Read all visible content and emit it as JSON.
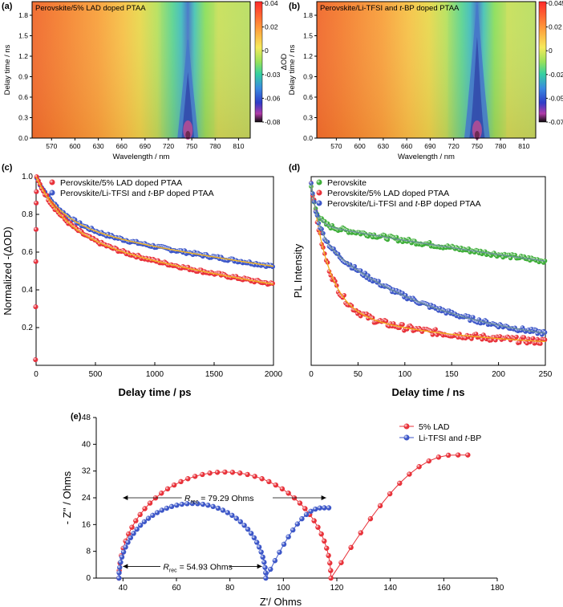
{
  "panels": {
    "a": {
      "label": "(a)",
      "title": "Perovskite/5% LAD doped PTAA"
    },
    "b": {
      "label": "(b)",
      "title_pre": "Perovskite/Li-TFSI and ",
      "title_it": "t",
      "title_post": "-BP doped PTAA"
    },
    "c": {
      "label": "(c)"
    },
    "d": {
      "label": "(d)"
    },
    "e": {
      "label": "(e)"
    }
  },
  "colors": {
    "red": "#e8323a",
    "blue": "#3d57c8",
    "green": "#3fae3a",
    "fit_yellow": "#f2b21b"
  },
  "chart_data": [
    {
      "id": "a",
      "type": "heatmap",
      "title": "Perovskite/5% LAD doped PTAA",
      "xlabel": "Wavelength / nm",
      "ylabel": "Delay time / ns",
      "xlim": [
        545,
        825
      ],
      "ylim": [
        0,
        2.0
      ],
      "xticks": [
        570,
        600,
        630,
        660,
        690,
        720,
        750,
        780,
        810
      ],
      "yticks": [
        0.0,
        0.3,
        0.6,
        0.9,
        1.2,
        1.5,
        1.8
      ],
      "peak_nm": 745,
      "colorbar_label": "ΔOD",
      "colorbar_ticks": [
        "0.04",
        "0.02",
        "0",
        "-0.03",
        "-0.06",
        "-0.08"
      ]
    },
    {
      "id": "b",
      "type": "heatmap",
      "title": "Perovskite/Li-TFSI and t-BP doped PTAA",
      "xlabel": "Wavelength / nm",
      "ylabel": "Delay time / ns",
      "xlim": [
        545,
        825
      ],
      "ylim": [
        0,
        2.0
      ],
      "xticks": [
        570,
        600,
        630,
        660,
        690,
        720,
        750,
        780,
        810
      ],
      "yticks": [
        0.0,
        0.3,
        0.6,
        0.9,
        1.2,
        1.5,
        1.8
      ],
      "peak_nm": 750,
      "colorbar_label": "ΔOD",
      "colorbar_ticks": [
        "0.045",
        "0.02",
        "0",
        "-0.02",
        "-0.05",
        "-0.07"
      ]
    },
    {
      "id": "c",
      "type": "scatter",
      "xlabel": "Delay time / ps",
      "ylabel": "Normalized -(ΔOD)",
      "xlim": [
        0,
        2000
      ],
      "ylim": [
        0,
        1.0
      ],
      "xticks": [
        0,
        500,
        1000,
        1500,
        2000
      ],
      "yticks": [
        0.2,
        0.4,
        0.6,
        0.8,
        1.0
      ],
      "series": [
        {
          "name": "Perovskite/5% LAD doped PTAA",
          "color": "red",
          "a1": 0.3,
          "t1": 250,
          "a2": 0.7,
          "t2": 4100
        },
        {
          "name_pre": "Perovskite/Li-TFSI and ",
          "name_it": "t",
          "name_post": "-BP doped PTAA",
          "color": "blue",
          "a1": 0.25,
          "t1": 220,
          "a2": 0.75,
          "t2": 5600
        }
      ]
    },
    {
      "id": "d",
      "type": "scatter",
      "xlabel": "Delay time / ns",
      "ylabel": "PL Intensity",
      "xlim": [
        0,
        250
      ],
      "xticks": [
        0,
        50,
        100,
        150,
        200,
        250
      ],
      "series": [
        {
          "name": "Perovskite",
          "color": "green",
          "a1": 0.22,
          "t1": 6,
          "a2": 0.78,
          "t2": 770
        },
        {
          "name": "Perovskite/5% LAD doped PTAA",
          "color": "red",
          "a1": 0.75,
          "t1": 18,
          "a2": 0.25,
          "t2": 140
        },
        {
          "name_pre": "Perovskite/Li-TFSI and ",
          "name_it": "t",
          "name_post": "-BP doped PTAA",
          "color": "blue",
          "a1": 0.3,
          "t1": 8,
          "a2": 0.7,
          "t2": 130
        }
      ]
    },
    {
      "id": "e",
      "type": "scatter",
      "xlabel": "Z'/ Ohms",
      "ylabel": "- Z'' / Ohms",
      "xlim": [
        30,
        180
      ],
      "ylim": [
        0,
        48
      ],
      "xticks": [
        40,
        60,
        80,
        100,
        120,
        140,
        160,
        180
      ],
      "yticks": [
        0,
        8,
        16,
        24,
        32,
        40,
        48
      ],
      "annotations": [
        {
          "text_sub": "rec",
          "text": " = 79.29 Ohms",
          "x": 79,
          "y": 24
        },
        {
          "text_sub": "rec",
          "text": " = 54.93 Ohms",
          "x": 67,
          "y": 3.5
        }
      ],
      "series": [
        {
          "name": "5% LAD",
          "color": "red",
          "r0": 38.5,
          "rrec": 79.29,
          "y_peak": 31.7,
          "arc2_x": [
            118,
            169
          ],
          "arc2_peak": 36.8
        },
        {
          "name_pre": "Li-TFSI and ",
          "name_it": "t",
          "name_post": "-BP",
          "color": "blue",
          "r0": 38.5,
          "rrec": 54.93,
          "y_peak": 22.3,
          "arc2_x": [
            93.5,
            117
          ],
          "arc2_peak": 21.0
        }
      ]
    }
  ]
}
